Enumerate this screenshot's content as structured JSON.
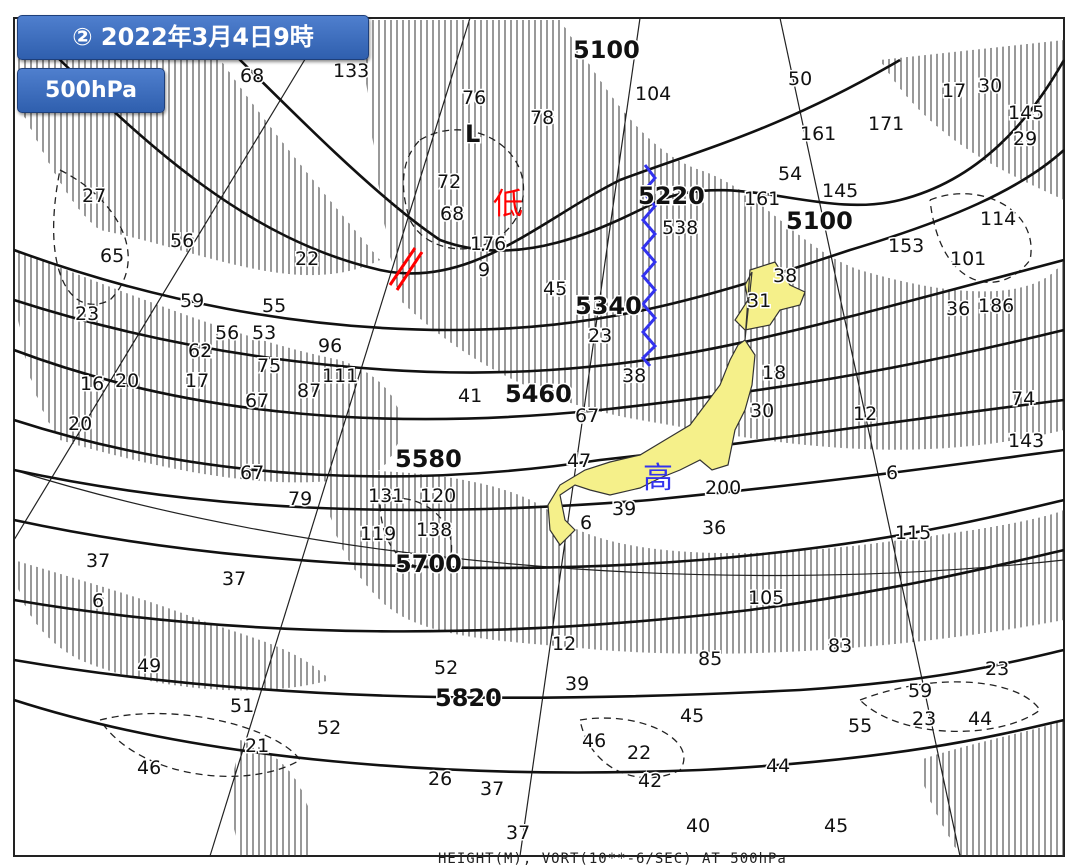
{
  "header": {
    "title": "② 2022年3月4日9時",
    "level": "500hPa"
  },
  "annotations": {
    "low_mark": "低",
    "high_mark": "高",
    "trough_color": "#ff0000",
    "ridge_color": "#3333ee"
  },
  "colors": {
    "japan_fill": "#f5f08a",
    "hatch": "#222222"
  },
  "contour_labels": [
    "5100",
    "5220",
    "5340",
    "5460",
    "5580",
    "5700",
    "5820",
    "5100"
  ],
  "low_symbol": "L",
  "values": [
    "68",
    "133",
    "76",
    "78",
    "72",
    "68",
    "176",
    "9",
    "22",
    "27",
    "56",
    "65",
    "59",
    "55",
    "56",
    "53",
    "23",
    "62",
    "17",
    "75",
    "96",
    "111",
    "87",
    "67",
    "16",
    "20",
    "20",
    "41",
    "67",
    "45",
    "23",
    "38",
    "538",
    "104",
    "50",
    "161",
    "171",
    "54",
    "161",
    "145",
    "153",
    "114",
    "101",
    "36",
    "186",
    "17",
    "30",
    "145",
    "29",
    "38",
    "31",
    "18",
    "30",
    "12",
    "74",
    "143",
    "6",
    "115",
    "200",
    "36",
    "39",
    "6",
    "47",
    "131",
    "120",
    "79",
    "67",
    "119",
    "138",
    "37",
    "37",
    "6",
    "105",
    "83",
    "85",
    "12",
    "39",
    "52",
    "49",
    "51",
    "52",
    "21",
    "46",
    "26",
    "37",
    "46",
    "22",
    "42",
    "45",
    "44",
    "55",
    "59",
    "23",
    "44",
    "23",
    "37",
    "40",
    "45"
  ],
  "footer": "HEIGHT(M), VORT(10**-6/SEC) AT 500hPa"
}
